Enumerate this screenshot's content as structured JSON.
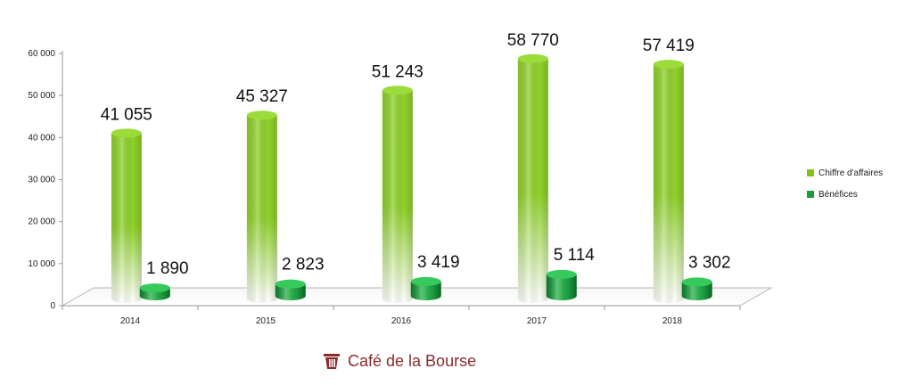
{
  "chart_data": {
    "type": "bar",
    "categories": [
      "2014",
      "2015",
      "2016",
      "2017",
      "2018"
    ],
    "series": [
      {
        "name": "Chiffre d'affaires",
        "values": [
          41055,
          45327,
          51243,
          58770,
          57419
        ],
        "labels": [
          "41 055",
          "45 327",
          "51 243",
          "58 770",
          "57 419"
        ],
        "color": "#7fc21f"
      },
      {
        "name": "Bénéfices",
        "values": [
          1890,
          2823,
          3419,
          5114,
          3302
        ],
        "labels": [
          "1 890",
          "2 823",
          "3 419",
          "5 114",
          "3 302"
        ],
        "color": "#1a9b3c"
      }
    ],
    "y_ticks": [
      0,
      10000,
      20000,
      30000,
      40000,
      50000,
      60000
    ],
    "y_tick_labels": [
      "0",
      "10 000",
      "20 000",
      "30 000",
      "40 000",
      "50 000",
      "60 000"
    ],
    "ylim": [
      0,
      60000
    ],
    "legend_position": "right",
    "grid": false,
    "style": "3d-cylinder"
  },
  "brand": {
    "name": "Café de la Bourse",
    "color": "#8c2b2b",
    "icon": "cafe-logo-icon"
  }
}
